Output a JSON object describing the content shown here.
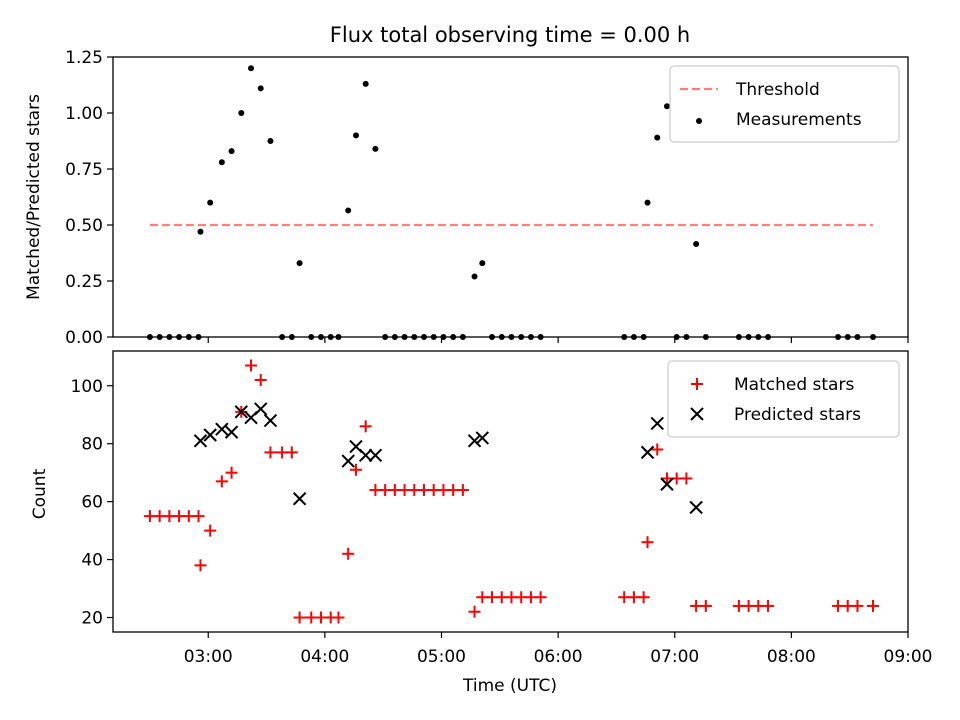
{
  "chart_data": [
    {
      "type": "scatter",
      "title": "Flux total observing time = 0.00 h",
      "xlabel": "",
      "ylabel": "Matched/Predicted stars",
      "xlim": [
        "02:11",
        "09:00"
      ],
      "ylim": [
        0,
        1.25
      ],
      "yticks": [
        "0.00",
        "0.25",
        "0.50",
        "0.75",
        "1.00",
        "1.25"
      ],
      "grid": false,
      "legend_position": "top-right",
      "threshold": {
        "name": "Threshold",
        "value": 0.5,
        "x_start": "02:30",
        "x_end": "08:42",
        "color": "#ff7f7f",
        "style": "dashed"
      },
      "series": [
        {
          "name": "Measurements",
          "color": "#000000",
          "marker": "dot",
          "points": [
            [
              "02:30",
              0
            ],
            [
              "02:35",
              0
            ],
            [
              "02:40",
              0
            ],
            [
              "02:45",
              0
            ],
            [
              "02:50",
              0
            ],
            [
              "02:55",
              0
            ],
            [
              "02:56",
              0.47
            ],
            [
              "03:01",
              0.6
            ],
            [
              "03:07",
              0.78
            ],
            [
              "03:12",
              0.83
            ],
            [
              "03:17",
              1.0
            ],
            [
              "03:22",
              1.2
            ],
            [
              "03:27",
              1.11
            ],
            [
              "03:32",
              0.875
            ],
            [
              "03:38",
              0
            ],
            [
              "03:43",
              0
            ],
            [
              "03:47",
              0.33
            ],
            [
              "03:53",
              0
            ],
            [
              "03:58",
              0
            ],
            [
              "04:03",
              0
            ],
            [
              "04:07",
              0
            ],
            [
              "04:12",
              0.565
            ],
            [
              "04:16",
              0.9
            ],
            [
              "04:21",
              1.13
            ],
            [
              "04:26",
              0.84
            ],
            [
              "04:31",
              0
            ],
            [
              "04:36",
              0
            ],
            [
              "04:41",
              0
            ],
            [
              "04:46",
              0
            ],
            [
              "04:51",
              0
            ],
            [
              "04:56",
              0
            ],
            [
              "05:01",
              0
            ],
            [
              "05:06",
              0
            ],
            [
              "05:11",
              0
            ],
            [
              "05:17",
              0.27
            ],
            [
              "05:21",
              0.33
            ],
            [
              "05:26",
              0
            ],
            [
              "05:31",
              0
            ],
            [
              "05:36",
              0
            ],
            [
              "05:41",
              0
            ],
            [
              "05:46",
              0
            ],
            [
              "05:51",
              0
            ],
            [
              "06:34",
              0
            ],
            [
              "06:39",
              0
            ],
            [
              "06:44",
              0
            ],
            [
              "06:46",
              0.6
            ],
            [
              "06:51",
              0.89
            ],
            [
              "06:56",
              1.03
            ],
            [
              "07:01",
              0
            ],
            [
              "07:06",
              0
            ],
            [
              "07:11",
              0.415
            ],
            [
              "07:16",
              0
            ],
            [
              "07:33",
              0
            ],
            [
              "07:38",
              0
            ],
            [
              "07:43",
              0
            ],
            [
              "07:48",
              0
            ],
            [
              "08:24",
              0
            ],
            [
              "08:29",
              0
            ],
            [
              "08:34",
              0
            ],
            [
              "08:42",
              0
            ]
          ]
        }
      ]
    },
    {
      "type": "scatter",
      "title": "",
      "xlabel": "Time (UTC)",
      "ylabel": "Count",
      "xlim": [
        "02:11",
        "09:00"
      ],
      "ylim": [
        15,
        112
      ],
      "xticks": [
        "03:00",
        "04:00",
        "05:00",
        "06:00",
        "07:00",
        "08:00",
        "09:00"
      ],
      "yticks": [
        "20",
        "40",
        "60",
        "80",
        "100"
      ],
      "grid": false,
      "legend_position": "top-right",
      "series": [
        {
          "name": "Matched stars",
          "color": "#ff0000",
          "marker": "plus",
          "points": [
            [
              "02:30",
              55
            ],
            [
              "02:35",
              55
            ],
            [
              "02:40",
              55
            ],
            [
              "02:45",
              55
            ],
            [
              "02:50",
              55
            ],
            [
              "02:55",
              55
            ],
            [
              "02:56",
              38
            ],
            [
              "03:01",
              50
            ],
            [
              "03:07",
              67
            ],
            [
              "03:12",
              70
            ],
            [
              "03:17",
              91
            ],
            [
              "03:22",
              107
            ],
            [
              "03:27",
              102
            ],
            [
              "03:32",
              77
            ],
            [
              "03:38",
              77
            ],
            [
              "03:43",
              77
            ],
            [
              "03:47",
              20
            ],
            [
              "03:53",
              20
            ],
            [
              "03:58",
              20
            ],
            [
              "04:03",
              20
            ],
            [
              "04:07",
              20
            ],
            [
              "04:12",
              42
            ],
            [
              "04:16",
              71
            ],
            [
              "04:21",
              86
            ],
            [
              "04:26",
              64
            ],
            [
              "04:31",
              64
            ],
            [
              "04:36",
              64
            ],
            [
              "04:41",
              64
            ],
            [
              "04:46",
              64
            ],
            [
              "04:51",
              64
            ],
            [
              "04:56",
              64
            ],
            [
              "05:01",
              64
            ],
            [
              "05:06",
              64
            ],
            [
              "05:11",
              64
            ],
            [
              "05:17",
              22
            ],
            [
              "05:21",
              27
            ],
            [
              "05:26",
              27
            ],
            [
              "05:31",
              27
            ],
            [
              "05:36",
              27
            ],
            [
              "05:41",
              27
            ],
            [
              "05:46",
              27
            ],
            [
              "05:51",
              27
            ],
            [
              "06:34",
              27
            ],
            [
              "06:39",
              27
            ],
            [
              "06:44",
              27
            ],
            [
              "06:46",
              46
            ],
            [
              "06:51",
              78
            ],
            [
              "06:56",
              68
            ],
            [
              "07:01",
              68
            ],
            [
              "07:06",
              68
            ],
            [
              "07:11",
              24
            ],
            [
              "07:16",
              24
            ],
            [
              "07:33",
              24
            ],
            [
              "07:38",
              24
            ],
            [
              "07:43",
              24
            ],
            [
              "07:48",
              24
            ],
            [
              "08:24",
              24
            ],
            [
              "08:29",
              24
            ],
            [
              "08:34",
              24
            ],
            [
              "08:42",
              24
            ]
          ]
        },
        {
          "name": "Predicted stars",
          "color": "#000000",
          "marker": "x",
          "points": [
            [
              "02:56",
              81
            ],
            [
              "03:01",
              83
            ],
            [
              "03:07",
              85
            ],
            [
              "03:12",
              84
            ],
            [
              "03:17",
              91
            ],
            [
              "03:22",
              89
            ],
            [
              "03:27",
              92
            ],
            [
              "03:32",
              88
            ],
            [
              "03:47",
              61
            ],
            [
              "04:12",
              74
            ],
            [
              "04:16",
              79
            ],
            [
              "04:21",
              76
            ],
            [
              "04:26",
              76
            ],
            [
              "05:17",
              81
            ],
            [
              "05:21",
              82
            ],
            [
              "06:46",
              77
            ],
            [
              "06:51",
              87
            ],
            [
              "06:56",
              66
            ],
            [
              "07:11",
              58
            ]
          ]
        }
      ]
    }
  ]
}
